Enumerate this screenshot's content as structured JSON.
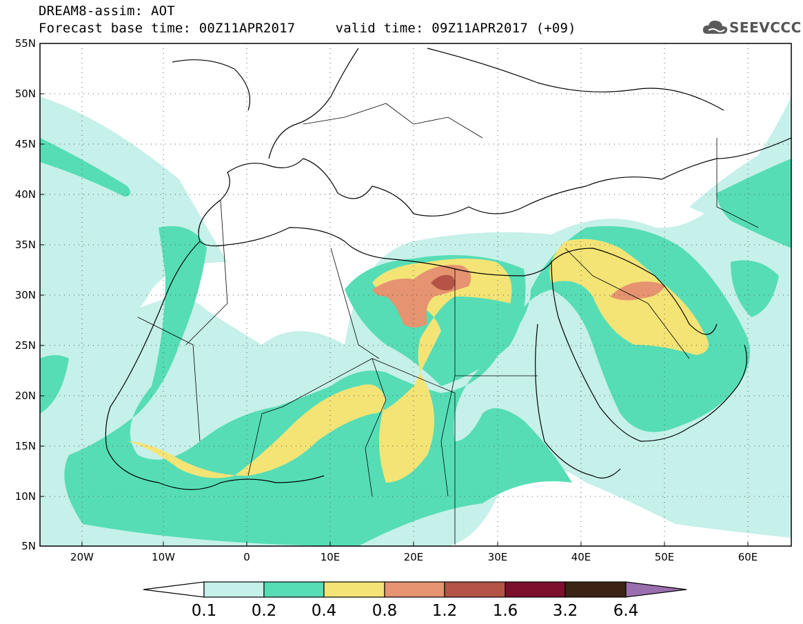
{
  "header": {
    "title_line1": "DREAM8-assim: AOT",
    "title_line2": "Forecast base time: 00Z11APR2017     valid time: 09Z11APR2017 (+09)",
    "logo_text": "SEEVCCC",
    "logo_icon": "cloud-icon"
  },
  "map": {
    "projection": "lat-lon",
    "lon_range": [
      -25,
      65
    ],
    "lat_range": [
      5,
      55
    ],
    "grid": "dotted",
    "lat_ticks": [
      "55N",
      "50N",
      "45N",
      "40N",
      "35N",
      "30N",
      "25N",
      "20N",
      "15N",
      "10N",
      "5N"
    ],
    "lon_ticks": [
      "20W",
      "10W",
      "0",
      "10E",
      "20E",
      "30E",
      "40E",
      "50E",
      "60E"
    ],
    "field": "Aerosol optical thickness (AOT)"
  },
  "colorbar": {
    "labels": [
      "0.1",
      "0.2",
      "0.4",
      "0.8",
      "1.2",
      "1.6",
      "3.2",
      "6.4"
    ],
    "colors": {
      "below": "#ffffff",
      "c_01_02": "#c6f0ea",
      "c_02_04": "#56ddb6",
      "c_04_08": "#f4e476",
      "c_08_12": "#e59370",
      "c_12_16": "#b35447",
      "c_16_32": "#7b0f2c",
      "c_32_64": "#3b2414",
      "above": "#9a6fae"
    }
  }
}
